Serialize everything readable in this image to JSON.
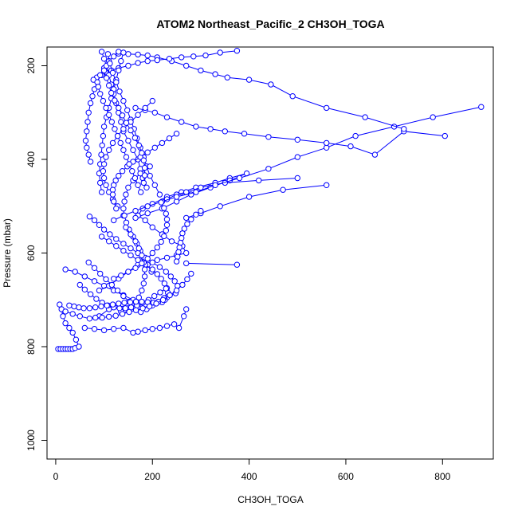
{
  "chart_data": {
    "type": "line",
    "title": "ATOM2 Northeast_Pacific_2 CH3OH_TOGA",
    "xlabel": "CH3OH_TOGA",
    "ylabel": "Pressure (mbar)",
    "xlim": [
      -18,
      905
    ],
    "ylim": [
      1040,
      160
    ],
    "y_reversed": true,
    "grid": false,
    "legend": "none",
    "marker": "open-circle",
    "xticks": [
      0,
      200,
      400,
      600,
      800
    ],
    "yticks": [
      200,
      400,
      600,
      800,
      1000
    ],
    "colors": {
      "series": "#0000ff",
      "axis": "#000000"
    },
    "series": [
      {
        "x": [
          5,
          10,
          15,
          20,
          25,
          30,
          35,
          40,
          48,
          42,
          35,
          28,
          20,
          15,
          12,
          8
        ],
        "y": [
          805,
          805,
          805,
          805,
          805,
          805,
          805,
          803,
          800,
          785,
          770,
          760,
          750,
          735,
          720,
          710
        ]
      },
      {
        "x": [
          20,
          35,
          50,
          70,
          90,
          110,
          130,
          150,
          170,
          160,
          140,
          120,
          100,
          80,
          60,
          40,
          20
        ],
        "y": [
          725,
          730,
          735,
          740,
          735,
          720,
          715,
          712,
          710,
          700,
          690,
          680,
          670,
          660,
          650,
          640,
          635
        ]
      },
      {
        "x": [
          60,
          80,
          100,
          120,
          140,
          160,
          170,
          185,
          200,
          215,
          230,
          245,
          255,
          265,
          270
        ],
        "y": [
          760,
          762,
          765,
          762,
          760,
          770,
          768,
          765,
          762,
          760,
          756,
          752,
          760,
          735,
          720
        ]
      },
      {
        "x": [
          270,
          375
        ],
        "y": [
          622,
          625
        ]
      },
      {
        "x": [
          90,
          110,
          130,
          150,
          170,
          190,
          210,
          230,
          250,
          270,
          262,
          240,
          220,
          200,
          185,
          170
        ],
        "y": [
          680,
          670,
          655,
          640,
          625,
          620,
          615,
          610,
          605,
          600,
          585,
          575,
          560,
          545,
          530,
          520
        ]
      },
      {
        "x": [
          170,
          180,
          200,
          230,
          260,
          290,
          330,
          360,
          395,
          360,
          320,
          280,
          250,
          220,
          190,
          165
        ],
        "y": [
          520,
          505,
          495,
          480,
          470,
          460,
          450,
          440,
          430,
          445,
          460,
          475,
          490,
          505,
          515,
          525
        ]
      },
      {
        "x": [
          500,
          420,
          350,
          300,
          270,
          250,
          230
        ],
        "y": [
          440,
          445,
          450,
          460,
          470,
          475,
          485
        ]
      },
      {
        "x": [
          560,
          470,
          400,
          340,
          300,
          270
        ],
        "y": [
          455,
          465,
          480,
          500,
          515,
          525
        ]
      },
      {
        "x": [
          880,
          780,
          700,
          620,
          560,
          500,
          440,
          380,
          330,
          290,
          250,
          220,
          190,
          165,
          140,
          120
        ],
        "y": [
          288,
          310,
          330,
          350,
          375,
          395,
          420,
          440,
          455,
          470,
          480,
          490,
          500,
          510,
          520,
          530
        ]
      },
      {
        "x": [
          805,
          720,
          660,
          610,
          560,
          500,
          440,
          390,
          350,
          320,
          290,
          260,
          230,
          205,
          185,
          165
        ],
        "y": [
          350,
          340,
          390,
          372,
          365,
          358,
          352,
          345,
          340,
          335,
          330,
          320,
          310,
          300,
          295,
          290
        ]
      },
      {
        "x": [
          720,
          640,
          560,
          490,
          445,
          400,
          355,
          330,
          300,
          270,
          240,
          210,
          190,
          170,
          150,
          130
        ],
        "y": [
          335,
          310,
          290,
          265,
          240,
          230,
          225,
          218,
          210,
          200,
          190,
          182,
          178,
          176,
          175,
          174
        ]
      },
      {
        "x": [
          375,
          340,
          310,
          285,
          260,
          235,
          210,
          190,
          170,
          150,
          130,
          115,
          105,
          95,
          85,
          78
        ],
        "y": [
          168,
          172,
          178,
          180,
          182,
          185,
          188,
          190,
          194,
          200,
          205,
          210,
          215,
          220,
          225,
          230
        ]
      },
      {
        "x": [
          130,
          120,
          110,
          100,
          92,
          86,
          80,
          76,
          72,
          68,
          66,
          64,
          62,
          64,
          68,
          72
        ],
        "y": [
          170,
          180,
          190,
          205,
          220,
          235,
          250,
          265,
          280,
          300,
          320,
          340,
          360,
          375,
          390,
          405
        ]
      },
      {
        "x": [
          95,
          100,
          105,
          110,
          115,
          120,
          125,
          130,
          135,
          140,
          150,
          160,
          170,
          175,
          180,
          188
        ],
        "y": [
          170,
          185,
          200,
          220,
          240,
          260,
          280,
          300,
          320,
          340,
          360,
          380,
          400,
          420,
          440,
          460
        ]
      },
      {
        "x": [
          140,
          135,
          130,
          125,
          120,
          115,
          110,
          105,
          100,
          98,
          96,
          94,
          92,
          90,
          92,
          95
        ],
        "y": [
          172,
          190,
          210,
          230,
          250,
          270,
          290,
          310,
          330,
          350,
          370,
          390,
          410,
          430,
          450,
          470
        ]
      },
      {
        "x": [
          108,
          112,
          118,
          125,
          132,
          140,
          148,
          155,
          162,
          168,
          175,
          182,
          188,
          195,
          205,
          215
        ],
        "y": [
          175,
          195,
          215,
          235,
          255,
          275,
          295,
          315,
          335,
          355,
          375,
          395,
          415,
          435,
          455,
          475
        ]
      },
      {
        "x": [
          200,
          185,
          170,
          155,
          140,
          128,
          118,
          110,
          104,
          100,
          98,
          100,
          104,
          110,
          118,
          128
        ],
        "y": [
          275,
          290,
          305,
          320,
          335,
          350,
          365,
          380,
          395,
          410,
          425,
          440,
          455,
          470,
          485,
          500
        ]
      },
      {
        "x": [
          250,
          235,
          220,
          205,
          190,
          175,
          160,
          148,
          138,
          130,
          124,
          120,
          118,
          118,
          120,
          125
        ],
        "y": [
          345,
          355,
          365,
          375,
          385,
          395,
          405,
          415,
          425,
          435,
          445,
          455,
          465,
          475,
          490,
          505
        ]
      },
      {
        "x": [
          195,
          175,
          160,
          150,
          145,
          142,
          140,
          142,
          146,
          152,
          160,
          168,
          175,
          182,
          190,
          198
        ],
        "y": [
          415,
          430,
          445,
          460,
          475,
          490,
          505,
          520,
          535,
          550,
          565,
          580,
          595,
          610,
          625,
          640
        ]
      },
      {
        "x": [
          70,
          80,
          90,
          100,
          112,
          125,
          140,
          155,
          170,
          185,
          200,
          215,
          228,
          238,
          246,
          252
        ],
        "y": [
          522,
          530,
          540,
          550,
          560,
          570,
          580,
          590,
          600,
          610,
          620,
          630,
          640,
          650,
          660,
          670
        ]
      },
      {
        "x": [
          95,
          110,
          125,
          140,
          155,
          170,
          185,
          200,
          210,
          218,
          225,
          230,
          232,
          230,
          226,
          220
        ],
        "y": [
          565,
          575,
          585,
          595,
          605,
          615,
          625,
          635,
          645,
          655,
          665,
          675,
          685,
          695,
          700,
          705
        ]
      },
      {
        "x": [
          145,
          155,
          165,
          172,
          178,
          182,
          184,
          184,
          182,
          178,
          172,
          165,
          158,
          150,
          142,
          135
        ],
        "y": [
          545,
          560,
          575,
          590,
          605,
          620,
          635,
          650,
          665,
          680,
          695,
          705,
          712,
          718,
          722,
          725
        ]
      },
      {
        "x": [
          68,
          80,
          92,
          104,
          116,
          128,
          140,
          152,
          164,
          176,
          188,
          200,
          212,
          224,
          236,
          248
        ],
        "y": [
          620,
          632,
          644,
          656,
          668,
          680,
          692,
          704,
          716,
          726,
          720,
          712,
          704,
          696,
          690,
          686
        ]
      },
      {
        "x": [
          50,
          60,
          72,
          84,
          96,
          108,
          120,
          132,
          144,
          156,
          168,
          180,
          192,
          204,
          216,
          228
        ],
        "y": [
          668,
          678,
          688,
          698,
          706,
          712,
          716,
          718,
          718,
          716,
          712,
          706,
          700,
          692,
          684,
          676
        ]
      },
      {
        "x": [
          28,
          38,
          48,
          58,
          70,
          82,
          94,
          106,
          118,
          130,
          142,
          154,
          166,
          178,
          190,
          202
        ],
        "y": [
          712,
          714,
          716,
          718,
          718,
          716,
          714,
          712,
          710,
          708,
          706,
          705,
          704,
          704,
          705,
          706
        ]
      },
      {
        "x": [
          82,
          96,
          110,
          124,
          138,
          152,
          166,
          180,
          194,
          208,
          222,
          236,
          250,
          262,
          272,
          280
        ],
        "y": [
          738,
          738,
          736,
          734,
          730,
          726,
          722,
          718,
          714,
          708,
          700,
          690,
          680,
          668,
          656,
          644
        ]
      },
      {
        "x": [
          120,
          135,
          150,
          165,
          178,
          190,
          200,
          210,
          218,
          224,
          228,
          230,
          230,
          228,
          224,
          218
        ],
        "y": [
          655,
          648,
          640,
          632,
          622,
          612,
          600,
          588,
          576,
          564,
          552,
          540,
          528,
          516,
          504,
          492
        ]
      },
      {
        "x": [
          300,
          290,
          280,
          272,
          266,
          262,
          260,
          258,
          256,
          254,
          252,
          250
        ],
        "y": [
          510,
          518,
          528,
          538,
          548,
          558,
          568,
          578,
          588,
          598,
          608,
          618
        ]
      },
      {
        "x": [
          100,
          105,
          110,
          115,
          122,
          130,
          138,
          146,
          155,
          164,
          172,
          178,
          182,
          184,
          184,
          182
        ],
        "y": [
          210,
          226,
          242,
          258,
          274,
          290,
          306,
          322,
          338,
          354,
          370,
          386,
          402,
          418,
          434,
          450
        ]
      },
      {
        "x": [
          88,
          92,
          98,
          104,
          110,
          116,
          122,
          128,
          134,
          140,
          146,
          152,
          158,
          164,
          170,
          176
        ],
        "y": [
          245,
          260,
          275,
          290,
          305,
          320,
          335,
          350,
          365,
          380,
          395,
          410,
          425,
          440,
          455,
          470
        ]
      }
    ]
  }
}
